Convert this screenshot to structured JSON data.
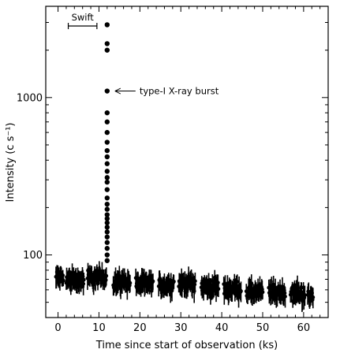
{
  "chart_data": {
    "type": "scatter",
    "xlabel": "Time since start of observation (ks)",
    "ylabel": "Intensity (c s⁻¹)",
    "xlim": [
      -3,
      66
    ],
    "ylim": [
      40,
      3800
    ],
    "y_scale": "log",
    "x_ticks": [
      0,
      10,
      20,
      30,
      40,
      50,
      60
    ],
    "x_tick_labels": [
      "0",
      "10",
      "20",
      "30",
      "40",
      "50",
      "60"
    ],
    "y_ticks": [
      100,
      1000
    ],
    "y_tick_labels": [
      "100",
      "1000"
    ],
    "grid": false,
    "annotations": {
      "swift_label": "Swift",
      "swift_interval": [
        2.5,
        9.5
      ],
      "burst_label": "type-I X-ray burst",
      "burst_point": [
        12.0,
        1100
      ]
    },
    "segments": [
      {
        "x_start": -0.5,
        "x_end": 1.3,
        "center": 72,
        "spread": 0.11
      },
      {
        "x_start": 2.0,
        "x_end": 6.3,
        "center": 70,
        "spread": 0.11
      },
      {
        "x_start": 7.2,
        "x_end": 11.8,
        "center": 72,
        "spread": 0.11
      },
      {
        "x_start": 13.5,
        "x_end": 17.6,
        "center": 68,
        "spread": 0.11
      },
      {
        "x_start": 19.0,
        "x_end": 23.2,
        "center": 66,
        "spread": 0.11
      },
      {
        "x_start": 24.6,
        "x_end": 28.3,
        "center": 65,
        "spread": 0.11
      },
      {
        "x_start": 29.5,
        "x_end": 33.5,
        "center": 66,
        "spread": 0.11
      },
      {
        "x_start": 35.0,
        "x_end": 39.2,
        "center": 63,
        "spread": 0.11
      },
      {
        "x_start": 40.5,
        "x_end": 44.7,
        "center": 61,
        "spread": 0.11
      },
      {
        "x_start": 46.0,
        "x_end": 50.0,
        "center": 58,
        "spread": 0.12
      },
      {
        "x_start": 51.5,
        "x_end": 55.5,
        "center": 58,
        "spread": 0.12
      },
      {
        "x_start": 56.8,
        "x_end": 60.3,
        "center": 57,
        "spread": 0.12
      },
      {
        "x_start": 61.0,
        "x_end": 62.3,
        "center": 54,
        "spread": 0.12
      }
    ],
    "burst_points": {
      "x": [
        12.0,
        12.0,
        12.0,
        12.0,
        12.0,
        12.0,
        12.0,
        12.0,
        12.0,
        12.0,
        12.0,
        12.0,
        12.0,
        12.0,
        12.0,
        12.0,
        12.0,
        12.0,
        12.0,
        12.0,
        12.0,
        12.0,
        12.0,
        12.0,
        12.0,
        12.0,
        12.0,
        12.0
      ],
      "y": [
        2900,
        2200,
        2000,
        1100,
        800,
        700,
        600,
        520,
        460,
        420,
        380,
        340,
        310,
        290,
        260,
        230,
        210,
        195,
        180,
        170,
        160,
        150,
        140,
        130,
        120,
        110,
        100,
        92
      ]
    }
  }
}
